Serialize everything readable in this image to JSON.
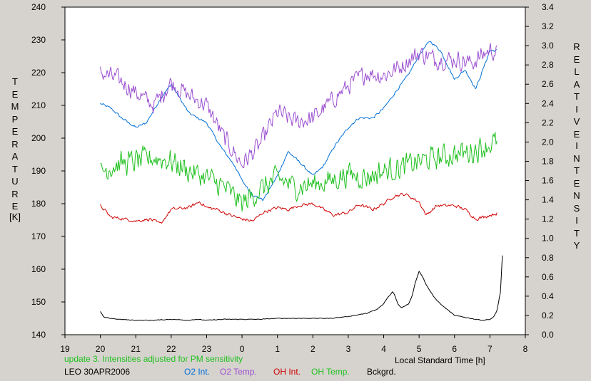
{
  "chart_data": {
    "type": "line",
    "title": "",
    "left_axis": {
      "label_letters": [
        "T",
        "E",
        "M",
        "P",
        "E",
        "R",
        "A",
        "T",
        "U",
        "R",
        "E"
      ],
      "unit": "[K]",
      "ylim": [
        140,
        240
      ],
      "ticks": [
        140,
        150,
        160,
        170,
        180,
        190,
        200,
        210,
        220,
        230,
        240
      ]
    },
    "right_axis": {
      "label_letters_1": [
        "R",
        "E",
        "L",
        "A",
        "T",
        "I",
        "V",
        "E"
      ],
      "label_letters_2": [
        "I",
        "N",
        "T",
        "E",
        "N",
        "S",
        "I",
        "T",
        "Y"
      ],
      "ylim": [
        0,
        3.4
      ],
      "ticks": [
        "0.0",
        "0.2",
        "0.4",
        "0.6",
        "0.8",
        "1.0",
        "1.2",
        "1.4",
        "1.6",
        "1.8",
        "2.0",
        "2.2",
        "2.4",
        "2.6",
        "2.8",
        "3.0",
        "3.2",
        "3.4"
      ]
    },
    "x_axis": {
      "label": "Local Standard Time [h]",
      "xlim": [
        19,
        32
      ],
      "ticks": [
        {
          "v": 19,
          "t": "19"
        },
        {
          "v": 20,
          "t": "20"
        },
        {
          "v": 21,
          "t": "21"
        },
        {
          "v": 22,
          "t": "22"
        },
        {
          "v": 23,
          "t": "23"
        },
        {
          "v": 24,
          "t": "0"
        },
        {
          "v": 25,
          "t": "1"
        },
        {
          "v": 26,
          "t": "2"
        },
        {
          "v": 27,
          "t": "3"
        },
        {
          "v": 28,
          "t": "4"
        },
        {
          "v": 29,
          "t": "5"
        },
        {
          "v": 30,
          "t": "6"
        },
        {
          "v": 31,
          "t": "7"
        },
        {
          "v": 32,
          "t": "8"
        }
      ]
    },
    "series": [
      {
        "name": "O2 Int.",
        "color": "#0070d8",
        "axis": "right",
        "noise": 0.015,
        "x": [
          20,
          20.3,
          20.6,
          21,
          21.3,
          21.7,
          22,
          22.5,
          23,
          23.4,
          23.8,
          24,
          24.3,
          24.6,
          25,
          25.3,
          25.6,
          26,
          26.3,
          26.6,
          27,
          27.3,
          27.7,
          28,
          28.3,
          28.7,
          29,
          29.3,
          29.6,
          30,
          30.3,
          30.6,
          31,
          31.2
        ],
        "y": [
          2.4,
          2.35,
          2.25,
          2.15,
          2.2,
          2.45,
          2.6,
          2.3,
          2.2,
          1.95,
          1.75,
          1.6,
          1.45,
          1.4,
          1.65,
          1.9,
          1.8,
          1.65,
          1.75,
          1.95,
          2.15,
          2.25,
          2.25,
          2.35,
          2.5,
          2.7,
          2.9,
          3.05,
          2.95,
          2.65,
          2.75,
          2.55,
          2.95,
          2.95
        ]
      },
      {
        "name": "O2 Temp.",
        "color": "#9b4fd0",
        "axis": "left",
        "noise": 3.5,
        "x": [
          20,
          20.5,
          21,
          21.5,
          22,
          22.5,
          23,
          23.5,
          24,
          24.5,
          25,
          25.5,
          26,
          26.5,
          27,
          27.5,
          28,
          28.5,
          29,
          29.5,
          30,
          30.5,
          31,
          31.2
        ],
        "y": [
          220,
          218,
          214,
          210,
          217,
          213,
          210,
          200,
          192,
          198,
          208,
          205,
          206,
          211,
          216,
          220,
          219,
          222,
          226,
          224,
          224,
          223,
          227,
          226
        ]
      },
      {
        "name": "OH Int.",
        "color": "#d00000",
        "axis": "right",
        "noise": 0.02,
        "x": [
          20,
          20.3,
          20.7,
          21,
          21.4,
          21.7,
          22,
          22.5,
          22.8,
          23,
          23.3,
          23.6,
          24,
          24.3,
          24.6,
          25,
          25.3,
          25.6,
          26,
          26.3,
          26.6,
          27,
          27.3,
          27.7,
          28,
          28.3,
          28.6,
          29,
          29.2,
          29.5,
          30,
          30.3,
          30.6,
          31,
          31.2
        ],
        "y": [
          1.34,
          1.22,
          1.2,
          1.18,
          1.2,
          1.15,
          1.3,
          1.32,
          1.38,
          1.32,
          1.3,
          1.25,
          1.2,
          1.18,
          1.27,
          1.32,
          1.3,
          1.34,
          1.36,
          1.3,
          1.24,
          1.27,
          1.35,
          1.3,
          1.36,
          1.44,
          1.46,
          1.38,
          1.24,
          1.34,
          1.34,
          1.3,
          1.2,
          1.24,
          1.26
        ]
      },
      {
        "name": "OH Temp.",
        "color": "#20c020",
        "axis": "left",
        "noise": 4.5,
        "x": [
          20,
          20.5,
          21,
          21.5,
          22,
          22.5,
          23,
          23.5,
          24,
          24.5,
          25,
          25.5,
          26,
          26.5,
          27,
          27.5,
          28,
          28.5,
          29,
          29.5,
          30,
          30.5,
          31,
          31.2
        ],
        "y": [
          190,
          192,
          193,
          194,
          193,
          190,
          188,
          185,
          180,
          184,
          188,
          185,
          186,
          187,
          189,
          188,
          190,
          191,
          193,
          194,
          195,
          196,
          198,
          199
        ]
      },
      {
        "name": "Bckgrd.",
        "color": "#000000",
        "axis": "right",
        "noise": 0.004,
        "x": [
          20,
          20.1,
          20.5,
          21,
          21.5,
          22,
          22.5,
          22.7,
          23,
          23.5,
          24,
          24.5,
          25,
          25.5,
          26,
          26.5,
          27,
          27.5,
          27.8,
          28,
          28.1,
          28.2,
          28.25,
          28.3,
          28.4,
          28.5,
          28.6,
          28.7,
          28.8,
          28.9,
          29,
          29.1,
          29.2,
          29.4,
          29.6,
          29.8,
          30,
          30.3,
          30.6,
          30.8,
          31,
          31.1,
          31.2,
          31.3,
          31.35
        ],
        "y": [
          0.24,
          0.18,
          0.16,
          0.15,
          0.15,
          0.16,
          0.15,
          0.16,
          0.15,
          0.16,
          0.16,
          0.16,
          0.17,
          0.17,
          0.17,
          0.17,
          0.19,
          0.22,
          0.26,
          0.32,
          0.38,
          0.42,
          0.45,
          0.42,
          0.32,
          0.28,
          0.3,
          0.32,
          0.4,
          0.55,
          0.66,
          0.6,
          0.52,
          0.4,
          0.32,
          0.26,
          0.2,
          0.18,
          0.16,
          0.15,
          0.16,
          0.18,
          0.25,
          0.45,
          0.82
        ]
      }
    ]
  },
  "footer": {
    "update_note": "update 3. Intensities adjusted for PM sensitivity",
    "update_color": "#20c020",
    "station_date": "LEO 30APR2006",
    "legend": [
      {
        "label": "O2 Int.",
        "color": "#0070d8"
      },
      {
        "label": "O2 Temp.",
        "color": "#9b4fd0"
      },
      {
        "label": "OH Int.",
        "color": "#d00000"
      },
      {
        "label": "OH Temp.",
        "color": "#20c020"
      },
      {
        "label": "Bckgrd.",
        "color": "#000000"
      }
    ]
  }
}
